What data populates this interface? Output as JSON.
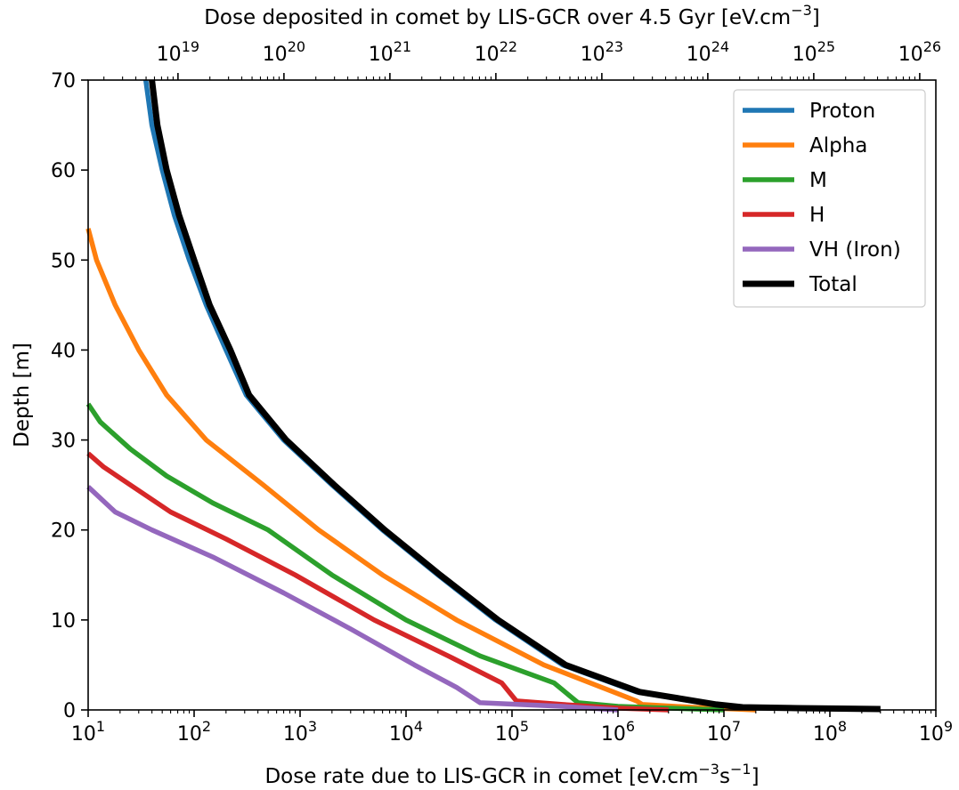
{
  "chart_data": {
    "type": "line",
    "xlabel_bottom": {
      "base": "Dose rate due to LIS-GCR in comet [eV.cm",
      "sup1": "−3",
      "mid": "s",
      "sup2": "−1",
      "end": "]"
    },
    "xlabel_top": {
      "base": "Dose deposited in comet by LIS-GCR over 4.5 Gyr [eV.cm",
      "sup": "−3",
      "end": "]"
    },
    "ylabel": "Depth [m]",
    "x_scale": "log",
    "xlim": [
      10,
      1000000000
    ],
    "ylim": [
      0,
      70
    ],
    "bottom_ticks": [
      {
        "value": 10,
        "base": "10",
        "exp": "1"
      },
      {
        "value": 100,
        "base": "10",
        "exp": "2"
      },
      {
        "value": 1000,
        "base": "10",
        "exp": "3"
      },
      {
        "value": 10000,
        "base": "10",
        "exp": "4"
      },
      {
        "value": 100000,
        "base": "10",
        "exp": "5"
      },
      {
        "value": 1000000,
        "base": "10",
        "exp": "6"
      },
      {
        "value": 10000000,
        "base": "10",
        "exp": "7"
      },
      {
        "value": 100000000,
        "base": "10",
        "exp": "8"
      },
      {
        "value": 1000000000,
        "base": "10",
        "exp": "9"
      }
    ],
    "top_ticks": [
      {
        "value": 1e+19,
        "base": "10",
        "exp": "19"
      },
      {
        "value": 1e+20,
        "base": "10",
        "exp": "20"
      },
      {
        "value": 1e+21,
        "base": "10",
        "exp": "21"
      },
      {
        "value": 1e+22,
        "base": "10",
        "exp": "22"
      },
      {
        "value": 1e+23,
        "base": "10",
        "exp": "23"
      },
      {
        "value": 1e+24,
        "base": "10",
        "exp": "24"
      },
      {
        "value": 1e+25,
        "base": "10",
        "exp": "25"
      },
      {
        "value": 1e+26,
        "base": "10",
        "exp": "26"
      }
    ],
    "top_axis_dose_per_rate": 1.42e+17,
    "y_ticks": [
      0,
      10,
      20,
      30,
      40,
      50,
      60,
      70
    ],
    "legend_position": "top-right",
    "series": [
      {
        "name": "Proton",
        "color": "#1f77b4",
        "points": [
          [
            35,
            70
          ],
          [
            40,
            65
          ],
          [
            50,
            60
          ],
          [
            65,
            55
          ],
          [
            90,
            50
          ],
          [
            130,
            45
          ],
          [
            200,
            40
          ],
          [
            310,
            35
          ],
          [
            700,
            30
          ],
          [
            2000,
            25
          ],
          [
            6000,
            20
          ],
          [
            20000,
            15
          ],
          [
            70000,
            10
          ],
          [
            300000,
            5
          ],
          [
            1500000,
            2
          ],
          [
            8000000,
            0.6
          ],
          [
            14000000,
            0.3
          ],
          [
            20000000,
            0
          ]
        ]
      },
      {
        "name": "Alpha",
        "color": "#ff7f0e",
        "points": [
          [
            10,
            53.5
          ],
          [
            12,
            50
          ],
          [
            18,
            45
          ],
          [
            30,
            40
          ],
          [
            55,
            35
          ],
          [
            130,
            30
          ],
          [
            450,
            25
          ],
          [
            1500,
            20
          ],
          [
            6000,
            15
          ],
          [
            30000,
            10
          ],
          [
            200000,
            5
          ],
          [
            1500000,
            1
          ],
          [
            1700000,
            0.6
          ],
          [
            5000000,
            0.3
          ],
          [
            20000000,
            0
          ]
        ]
      },
      {
        "name": "M",
        "color": "#2ca02c",
        "points": [
          [
            10,
            34
          ],
          [
            13,
            32
          ],
          [
            25,
            29
          ],
          [
            55,
            26
          ],
          [
            150,
            23
          ],
          [
            500,
            20
          ],
          [
            2000,
            15
          ],
          [
            10000,
            10
          ],
          [
            50000,
            6
          ],
          [
            250000,
            3
          ],
          [
            420000,
            0.8
          ],
          [
            1000000,
            0.4
          ],
          [
            3000000,
            0.2
          ],
          [
            10000000,
            0
          ]
        ]
      },
      {
        "name": "H",
        "color": "#d62728",
        "points": [
          [
            10,
            28.5
          ],
          [
            14,
            27
          ],
          [
            25,
            25
          ],
          [
            60,
            22
          ],
          [
            200,
            19
          ],
          [
            900,
            15
          ],
          [
            5000,
            10
          ],
          [
            25000,
            6
          ],
          [
            80000,
            3
          ],
          [
            110000,
            1
          ],
          [
            300000,
            0.6
          ],
          [
            1000000,
            0.2
          ],
          [
            3000000,
            0
          ]
        ]
      },
      {
        "name": "VH (Iron)",
        "color": "#9467bd",
        "points": [
          [
            10,
            24.8
          ],
          [
            18,
            22
          ],
          [
            40,
            20
          ],
          [
            150,
            17
          ],
          [
            700,
            13
          ],
          [
            3000,
            9
          ],
          [
            12000,
            5
          ],
          [
            30000,
            2.5
          ],
          [
            50000,
            0.8
          ],
          [
            300000,
            0.4
          ],
          [
            1000000,
            0
          ]
        ]
      },
      {
        "name": "Total",
        "color": "#000000",
        "points": [
          [
            40,
            70
          ],
          [
            45,
            65
          ],
          [
            55,
            60
          ],
          [
            72,
            55
          ],
          [
            100,
            50
          ],
          [
            140,
            45
          ],
          [
            220,
            40
          ],
          [
            330,
            35
          ],
          [
            740,
            30
          ],
          [
            2100,
            25
          ],
          [
            6300,
            20
          ],
          [
            21000,
            15
          ],
          [
            74000,
            10
          ],
          [
            320000,
            5
          ],
          [
            1600000,
            2
          ],
          [
            8500000,
            0.6
          ],
          [
            15000000,
            0.3
          ],
          [
            50000000,
            0.2
          ],
          [
            300000000,
            0.1
          ]
        ]
      }
    ]
  }
}
